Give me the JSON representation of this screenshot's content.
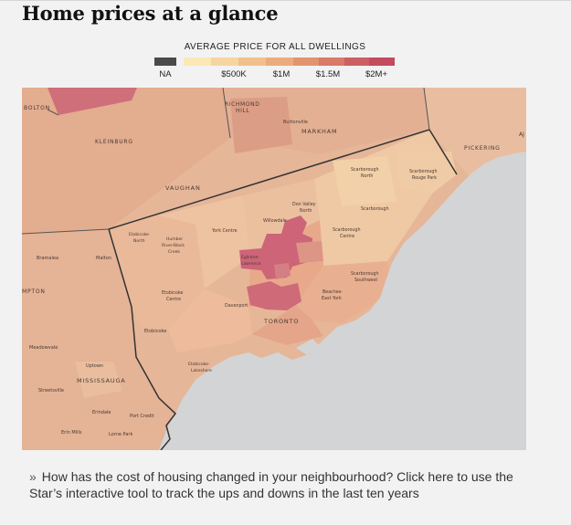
{
  "header": {
    "title": "Home prices at a glance"
  },
  "legend": {
    "title": "AVERAGE PRICE FOR ALL DWELLINGS",
    "na_label": "NA",
    "tick_labels": [
      "$500K",
      "$1M",
      "$1.5M",
      "$2M+"
    ],
    "colors": {
      "na": "#4a4a4a",
      "scale": [
        "#fbe8b5",
        "#f7d5a0",
        "#f2c08c",
        "#ecab7c",
        "#e4936f",
        "#da7a67",
        "#cc5f62",
        "#c44a5e"
      ]
    }
  },
  "map": {
    "places": {
      "bolton": "BOLTON",
      "richmond_hill_1": "RICHMOND",
      "richmond_hill_2": "HILL",
      "buttonville": "Buttonville",
      "markham": "MARKHAM",
      "pickering": "PICKERING",
      "ajax": "AJ",
      "kleinburg": "KLEINBURG",
      "vaughan": "VAUGHAN",
      "scarborough_north_1": "Scarborough",
      "scarborough_north_2": "North",
      "scarborough_rouge_1": "Scarborough",
      "scarborough_rouge_2": "Rouge Park",
      "don_valley_north_1": "Don Valley",
      "don_valley_north_2": "North",
      "scarborough": "Scarborough",
      "willowdale": "Willowdale",
      "york_centre": "York Centre",
      "etobicoke_north_1": "Etobicoke",
      "etobicoke_north_2": "North",
      "humber_1": "Humber",
      "humber_2": "River-Black",
      "humber_3": "Creek",
      "scarborough_centre_1": "Scarborough",
      "scarborough_centre_2": "Centre",
      "bramalea": "Bramalea",
      "malton": "Malton",
      "eglinton_1": "Eglinton-",
      "eglinton_2": "Lawrence",
      "brampton_partial": "MPTON",
      "scarborough_southwest_1": "Scarborough",
      "scarborough_southwest_2": "Southwest",
      "etobicoke_centre_1": "Etobicoke",
      "etobicoke_centre_2": "Centre",
      "beaches_1": "Beaches-",
      "beaches_2": "East York",
      "davenport": "Davenport",
      "toronto": "TORONTO",
      "etobicoke": "Etobicoke",
      "meadowvale": "Meadowvale",
      "etobicoke_lakeshore_1": "Etobicoke-",
      "etobicoke_lakeshore_2": "Lakeshore",
      "uptown": "Uptown",
      "mississauga": "MISSISSAUGA",
      "streetsville": "Streetsville",
      "erindale": "Erindale",
      "port_credit": "Port Credit",
      "erin_mills": "Erin Mills",
      "lorne_park": "Lorne Park"
    }
  },
  "caption": {
    "chevron": "»",
    "text": "How has the cost of housing changed in your neighbourhood? Click here to use the Star’s interactive tool to track the ups and downs in the last ten years"
  }
}
